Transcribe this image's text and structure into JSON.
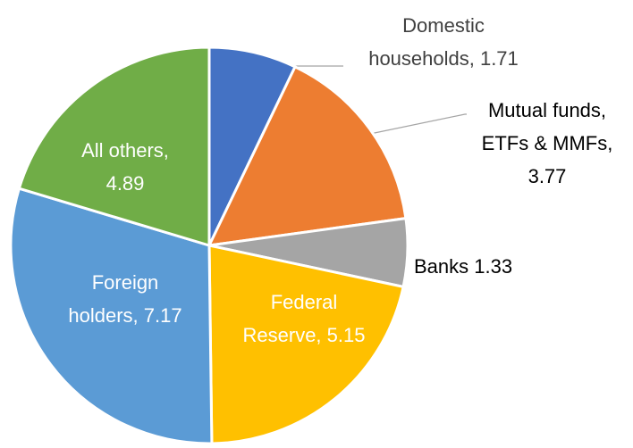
{
  "chart_data": {
    "type": "pie",
    "values": [
      1.71,
      3.77,
      1.33,
      5.15,
      7.17,
      4.89
    ],
    "value_labels": [
      [
        "Domestic",
        "households, 1.71"
      ],
      [
        "Mutual funds,",
        "ETFs & MMFs,",
        "3.77"
      ],
      [
        "Banks  1.33"
      ],
      [
        "Federal",
        "Reserve, 5.15"
      ],
      [
        "Foreign",
        "holders, 7.17"
      ],
      [
        "All others,",
        "4.89"
      ]
    ],
    "colors": [
      "#4472c4",
      "#ed7d31",
      "#a5a5a5",
      "#ffc000",
      "#5b9bd5",
      "#70ad47"
    ]
  }
}
